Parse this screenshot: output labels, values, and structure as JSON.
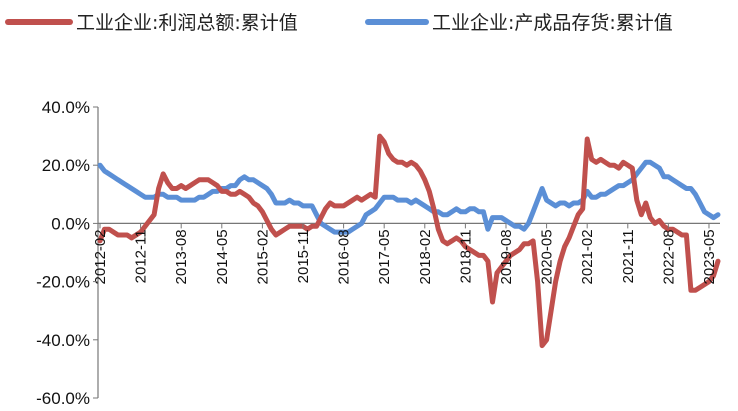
{
  "colors": {
    "profit": "#C0504D",
    "inventory": "#5B8FD6",
    "axis": "#777777"
  },
  "chart_data": {
    "type": "line",
    "title": "",
    "xlabel": "",
    "ylabel": "",
    "ylim": [
      -60,
      40
    ],
    "y_ticks": [
      40,
      20,
      0,
      -20,
      -40,
      -60
    ],
    "y_tick_labels": [
      "40.0%",
      "20.0%",
      "0.0%",
      "-20.0%",
      "-40.0%",
      "-60.0%"
    ],
    "x_tick_labels": [
      "2012-02",
      "2012-11",
      "2013-08",
      "2014-05",
      "2015-02",
      "2015-11",
      "2016-08",
      "2017-05",
      "2018-02",
      "2018-11",
      "2019-08",
      "2020-05",
      "2021-02",
      "2021-11",
      "2022-08",
      "2023-05"
    ],
    "x_start": "2012-02",
    "x_end": "2023-07",
    "grid": false,
    "legend_position": "top",
    "series": [
      {
        "name": "工业企业:利润总额:累计值",
        "color_key": "profit",
        "points": [
          [
            "2012-02",
            -6
          ],
          [
            "2012-03",
            -2
          ],
          [
            "2012-04",
            -2
          ],
          [
            "2012-05",
            -3
          ],
          [
            "2012-06",
            -4
          ],
          [
            "2012-07",
            -4
          ],
          [
            "2012-08",
            -4
          ],
          [
            "2012-09",
            -5
          ],
          [
            "2012-10",
            -4
          ],
          [
            "2012-11",
            -3
          ],
          [
            "2012-12",
            -1
          ],
          [
            "2013-01",
            1
          ],
          [
            "2013-02",
            3
          ],
          [
            "2013-03",
            12
          ],
          [
            "2013-04",
            17
          ],
          [
            "2013-05",
            14
          ],
          [
            "2013-06",
            12
          ],
          [
            "2013-07",
            12
          ],
          [
            "2013-08",
            13
          ],
          [
            "2013-09",
            12
          ],
          [
            "2013-10",
            13
          ],
          [
            "2013-11",
            14
          ],
          [
            "2013-12",
            15
          ],
          [
            "2014-01",
            15
          ],
          [
            "2014-02",
            15
          ],
          [
            "2014-03",
            14
          ],
          [
            "2014-04",
            13
          ],
          [
            "2014-05",
            11
          ],
          [
            "2014-06",
            11
          ],
          [
            "2014-07",
            10
          ],
          [
            "2014-08",
            10
          ],
          [
            "2014-09",
            11
          ],
          [
            "2014-10",
            10
          ],
          [
            "2014-11",
            9
          ],
          [
            "2014-12",
            7
          ],
          [
            "2015-01",
            6
          ],
          [
            "2015-02",
            4
          ],
          [
            "2015-03",
            1
          ],
          [
            "2015-04",
            -2
          ],
          [
            "2015-05",
            -4
          ],
          [
            "2015-06",
            -3
          ],
          [
            "2015-07",
            -2
          ],
          [
            "2015-08",
            -1
          ],
          [
            "2015-09",
            -1
          ],
          [
            "2015-10",
            -1
          ],
          [
            "2015-11",
            -1
          ],
          [
            "2015-12",
            -2
          ],
          [
            "2016-01",
            -1
          ],
          [
            "2016-02",
            -1
          ],
          [
            "2016-03",
            2
          ],
          [
            "2016-04",
            5
          ],
          [
            "2016-05",
            7
          ],
          [
            "2016-06",
            6
          ],
          [
            "2016-07",
            6
          ],
          [
            "2016-08",
            6
          ],
          [
            "2016-09",
            7
          ],
          [
            "2016-10",
            8
          ],
          [
            "2016-11",
            9
          ],
          [
            "2016-12",
            8
          ],
          [
            "2017-01",
            9
          ],
          [
            "2017-02",
            10
          ],
          [
            "2017-03",
            9
          ],
          [
            "2017-04",
            30
          ],
          [
            "2017-05",
            28
          ],
          [
            "2017-06",
            24
          ],
          [
            "2017-07",
            22
          ],
          [
            "2017-08",
            21
          ],
          [
            "2017-09",
            21
          ],
          [
            "2017-10",
            20
          ],
          [
            "2017-11",
            21
          ],
          [
            "2017-12",
            20
          ],
          [
            "2018-01",
            18
          ],
          [
            "2018-02",
            15
          ],
          [
            "2018-03",
            11
          ],
          [
            "2018-04",
            5
          ],
          [
            "2018-05",
            -2
          ],
          [
            "2018-06",
            -6
          ],
          [
            "2018-07",
            -7
          ],
          [
            "2018-08",
            -6
          ],
          [
            "2018-09",
            -5
          ],
          [
            "2018-10",
            -6
          ],
          [
            "2018-11",
            -8
          ],
          [
            "2018-12",
            -9
          ],
          [
            "2019-01",
            -10
          ],
          [
            "2019-02",
            -11
          ],
          [
            "2019-03",
            -11
          ],
          [
            "2019-04",
            -13
          ],
          [
            "2019-05",
            -27
          ],
          [
            "2019-06",
            -17
          ],
          [
            "2019-07",
            -15
          ],
          [
            "2019-08",
            -13
          ],
          [
            "2019-09",
            -11
          ],
          [
            "2019-10",
            -10
          ],
          [
            "2019-11",
            -9
          ],
          [
            "2019-12",
            -7
          ],
          [
            "2020-01",
            -7
          ],
          [
            "2020-02",
            -6
          ],
          [
            "2020-03",
            -20
          ],
          [
            "2020-04",
            -42
          ],
          [
            "2020-05",
            -40
          ],
          [
            "2020-06",
            -30
          ],
          [
            "2020-07",
            -20
          ],
          [
            "2020-08",
            -13
          ],
          [
            "2020-09",
            -8
          ],
          [
            "2020-10",
            -5
          ],
          [
            "2020-11",
            -1
          ],
          [
            "2020-12",
            3
          ],
          [
            "2021-01",
            5
          ],
          [
            "2021-02",
            29
          ],
          [
            "2021-03",
            22
          ],
          [
            "2021-04",
            21
          ],
          [
            "2021-05",
            22
          ],
          [
            "2021-06",
            21
          ],
          [
            "2021-07",
            20
          ],
          [
            "2021-08",
            20
          ],
          [
            "2021-09",
            19
          ],
          [
            "2021-10",
            21
          ],
          [
            "2021-11",
            20
          ],
          [
            "2021-12",
            19
          ],
          [
            "2022-01",
            8
          ],
          [
            "2022-02",
            3
          ],
          [
            "2022-03",
            7
          ],
          [
            "2022-04",
            2
          ],
          [
            "2022-05",
            0
          ],
          [
            "2022-06",
            1
          ],
          [
            "2022-07",
            -1
          ],
          [
            "2022-08",
            -2
          ],
          [
            "2022-09",
            -2
          ],
          [
            "2022-10",
            -3
          ],
          [
            "2022-11",
            -4
          ],
          [
            "2022-12",
            -4
          ],
          [
            "2023-01",
            -23
          ],
          [
            "2023-02",
            -23
          ],
          [
            "2023-03",
            -22
          ],
          [
            "2023-04",
            -21
          ],
          [
            "2023-05",
            -20
          ],
          [
            "2023-06",
            -18
          ],
          [
            "2023-07",
            -13
          ]
        ]
      },
      {
        "name": "工业企业:产成品存货:累计值",
        "color_key": "inventory",
        "points": [
          [
            "2012-02",
            20
          ],
          [
            "2012-03",
            18
          ],
          [
            "2012-04",
            17
          ],
          [
            "2012-05",
            16
          ],
          [
            "2012-06",
            15
          ],
          [
            "2012-07",
            14
          ],
          [
            "2012-08",
            13
          ],
          [
            "2012-09",
            12
          ],
          [
            "2012-10",
            11
          ],
          [
            "2012-11",
            10
          ],
          [
            "2012-12",
            9
          ],
          [
            "2013-01",
            9
          ],
          [
            "2013-02",
            9
          ],
          [
            "2013-03",
            10
          ],
          [
            "2013-04",
            10
          ],
          [
            "2013-05",
            9
          ],
          [
            "2013-06",
            9
          ],
          [
            "2013-07",
            9
          ],
          [
            "2013-08",
            8
          ],
          [
            "2013-09",
            8
          ],
          [
            "2013-10",
            8
          ],
          [
            "2013-11",
            8
          ],
          [
            "2013-12",
            9
          ],
          [
            "2014-01",
            9
          ],
          [
            "2014-02",
            10
          ],
          [
            "2014-03",
            11
          ],
          [
            "2014-04",
            11
          ],
          [
            "2014-05",
            12
          ],
          [
            "2014-06",
            12
          ],
          [
            "2014-07",
            13
          ],
          [
            "2014-08",
            13
          ],
          [
            "2014-09",
            15
          ],
          [
            "2014-10",
            16
          ],
          [
            "2014-11",
            15
          ],
          [
            "2014-12",
            15
          ],
          [
            "2015-01",
            14
          ],
          [
            "2015-02",
            13
          ],
          [
            "2015-03",
            12
          ],
          [
            "2015-04",
            10
          ],
          [
            "2015-05",
            7
          ],
          [
            "2015-06",
            7
          ],
          [
            "2015-07",
            7
          ],
          [
            "2015-08",
            8
          ],
          [
            "2015-09",
            7
          ],
          [
            "2015-10",
            7
          ],
          [
            "2015-11",
            6
          ],
          [
            "2015-12",
            6
          ],
          [
            "2016-01",
            6
          ],
          [
            "2016-02",
            3
          ],
          [
            "2016-03",
            0
          ],
          [
            "2016-04",
            -1
          ],
          [
            "2016-05",
            -2
          ],
          [
            "2016-06",
            -3
          ],
          [
            "2016-07",
            -3
          ],
          [
            "2016-08",
            -3
          ],
          [
            "2016-09",
            -3
          ],
          [
            "2016-10",
            -2
          ],
          [
            "2016-11",
            -1
          ],
          [
            "2016-12",
            0
          ],
          [
            "2017-01",
            3
          ],
          [
            "2017-02",
            4
          ],
          [
            "2017-03",
            5
          ],
          [
            "2017-04",
            7
          ],
          [
            "2017-05",
            9
          ],
          [
            "2017-06",
            9
          ],
          [
            "2017-07",
            9
          ],
          [
            "2017-08",
            8
          ],
          [
            "2017-09",
            8
          ],
          [
            "2017-10",
            8
          ],
          [
            "2017-11",
            7
          ],
          [
            "2017-12",
            8
          ],
          [
            "2018-01",
            7
          ],
          [
            "2018-02",
            6
          ],
          [
            "2018-03",
            5
          ],
          [
            "2018-04",
            4
          ],
          [
            "2018-05",
            4
          ],
          [
            "2018-06",
            3
          ],
          [
            "2018-07",
            3
          ],
          [
            "2018-08",
            4
          ],
          [
            "2018-09",
            5
          ],
          [
            "2018-10",
            4
          ],
          [
            "2018-11",
            4
          ],
          [
            "2018-12",
            5
          ],
          [
            "2019-01",
            5
          ],
          [
            "2019-02",
            4
          ],
          [
            "2019-03",
            4
          ],
          [
            "2019-04",
            -2
          ],
          [
            "2019-05",
            2
          ],
          [
            "2019-06",
            2
          ],
          [
            "2019-07",
            2
          ],
          [
            "2019-08",
            1
          ],
          [
            "2019-09",
            0
          ],
          [
            "2019-10",
            -1
          ],
          [
            "2019-11",
            -1
          ],
          [
            "2019-12",
            -2
          ],
          [
            "2020-01",
            0
          ],
          [
            "2020-02",
            4
          ],
          [
            "2020-03",
            8
          ],
          [
            "2020-04",
            12
          ],
          [
            "2020-05",
            8
          ],
          [
            "2020-06",
            7
          ],
          [
            "2020-07",
            6
          ],
          [
            "2020-08",
            7
          ],
          [
            "2020-09",
            7
          ],
          [
            "2020-10",
            6
          ],
          [
            "2020-11",
            7
          ],
          [
            "2020-12",
            7
          ],
          [
            "2021-01",
            8
          ],
          [
            "2021-02",
            11
          ],
          [
            "2021-03",
            9
          ],
          [
            "2021-04",
            9
          ],
          [
            "2021-05",
            10
          ],
          [
            "2021-06",
            10
          ],
          [
            "2021-07",
            11
          ],
          [
            "2021-08",
            12
          ],
          [
            "2021-09",
            13
          ],
          [
            "2021-10",
            13
          ],
          [
            "2021-11",
            14
          ],
          [
            "2021-12",
            15
          ],
          [
            "2022-01",
            17
          ],
          [
            "2022-02",
            19
          ],
          [
            "2022-03",
            21
          ],
          [
            "2022-04",
            21
          ],
          [
            "2022-05",
            20
          ],
          [
            "2022-06",
            19
          ],
          [
            "2022-07",
            16
          ],
          [
            "2022-08",
            16
          ],
          [
            "2022-09",
            15
          ],
          [
            "2022-10",
            14
          ],
          [
            "2022-11",
            13
          ],
          [
            "2022-12",
            12
          ],
          [
            "2023-01",
            12
          ],
          [
            "2023-02",
            10
          ],
          [
            "2023-03",
            7
          ],
          [
            "2023-04",
            4
          ],
          [
            "2023-05",
            3
          ],
          [
            "2023-06",
            2
          ],
          [
            "2023-07",
            3
          ]
        ]
      }
    ]
  }
}
